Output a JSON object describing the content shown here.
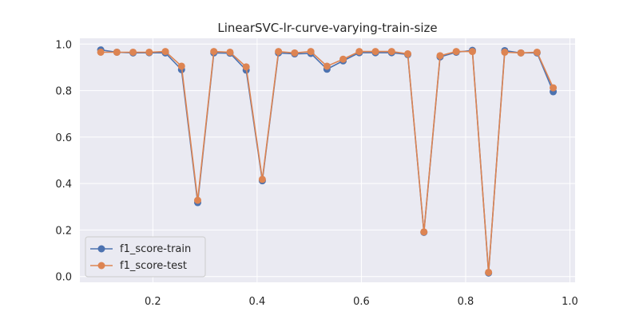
{
  "chart_data": {
    "type": "line",
    "title": "LinearSVC-lr-curve-varying-train-size",
    "xlabel": "",
    "ylabel": "",
    "xlim": [
      0.06,
      1.01
    ],
    "ylim": [
      -0.025,
      1.025
    ],
    "xticks": [
      0.2,
      0.4,
      0.6,
      0.8,
      1.0
    ],
    "xtick_labels": [
      "0.2",
      "0.4",
      "0.6",
      "0.8",
      "1.0"
    ],
    "yticks": [
      0.0,
      0.2,
      0.4,
      0.6,
      0.8,
      1.0
    ],
    "ytick_labels": [
      "0.0",
      "0.2",
      "0.4",
      "0.6",
      "0.8",
      "1.0"
    ],
    "grid": true,
    "legend_position": "lower-left",
    "x": [
      0.1,
      0.131,
      0.162,
      0.193,
      0.224,
      0.255,
      0.286,
      0.317,
      0.348,
      0.379,
      0.41,
      0.441,
      0.472,
      0.503,
      0.534,
      0.565,
      0.596,
      0.627,
      0.658,
      0.689,
      0.72,
      0.751,
      0.782,
      0.813,
      0.844,
      0.875,
      0.906,
      0.937,
      0.968
    ],
    "series": [
      {
        "name": "f1_score-train",
        "color": "#4c72b0",
        "values": [
          0.975,
          0.965,
          0.962,
          0.963,
          0.962,
          0.89,
          0.318,
          0.962,
          0.961,
          0.888,
          0.412,
          0.962,
          0.958,
          0.96,
          0.892,
          0.928,
          0.963,
          0.963,
          0.963,
          0.955,
          0.19,
          0.945,
          0.965,
          0.973,
          0.015,
          0.972,
          0.962,
          0.962,
          0.795
        ]
      },
      {
        "name": "f1_score-test",
        "color": "#dd8452",
        "values": [
          0.965,
          0.965,
          0.965,
          0.965,
          0.968,
          0.905,
          0.328,
          0.968,
          0.965,
          0.902,
          0.418,
          0.968,
          0.962,
          0.968,
          0.905,
          0.935,
          0.968,
          0.968,
          0.968,
          0.958,
          0.192,
          0.95,
          0.968,
          0.968,
          0.018,
          0.965,
          0.962,
          0.965,
          0.812
        ]
      }
    ]
  }
}
